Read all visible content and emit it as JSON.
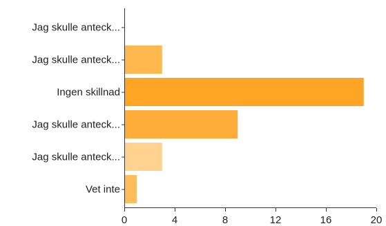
{
  "chart_data": {
    "type": "bar",
    "orientation": "horizontal",
    "categories": [
      "Jag skulle anteck...",
      "Jag skulle anteck...",
      "Ingen skillnad",
      "Jag skulle anteck...",
      "Jag skulle anteck...",
      "Vet inte"
    ],
    "values": [
      0,
      3,
      19,
      9,
      3,
      1
    ],
    "bar_colors": [
      "#ffc266",
      "#ffb84d",
      "#ffa526",
      "#ffad3a",
      "#ffd28f",
      "#ffbd5a"
    ],
    "xlim": [
      0,
      20
    ],
    "xticks": [
      "0",
      "4",
      "8",
      "12",
      "16",
      "20"
    ],
    "grid": false,
    "legend": "none",
    "title": "",
    "xlabel": "",
    "ylabel": ""
  }
}
